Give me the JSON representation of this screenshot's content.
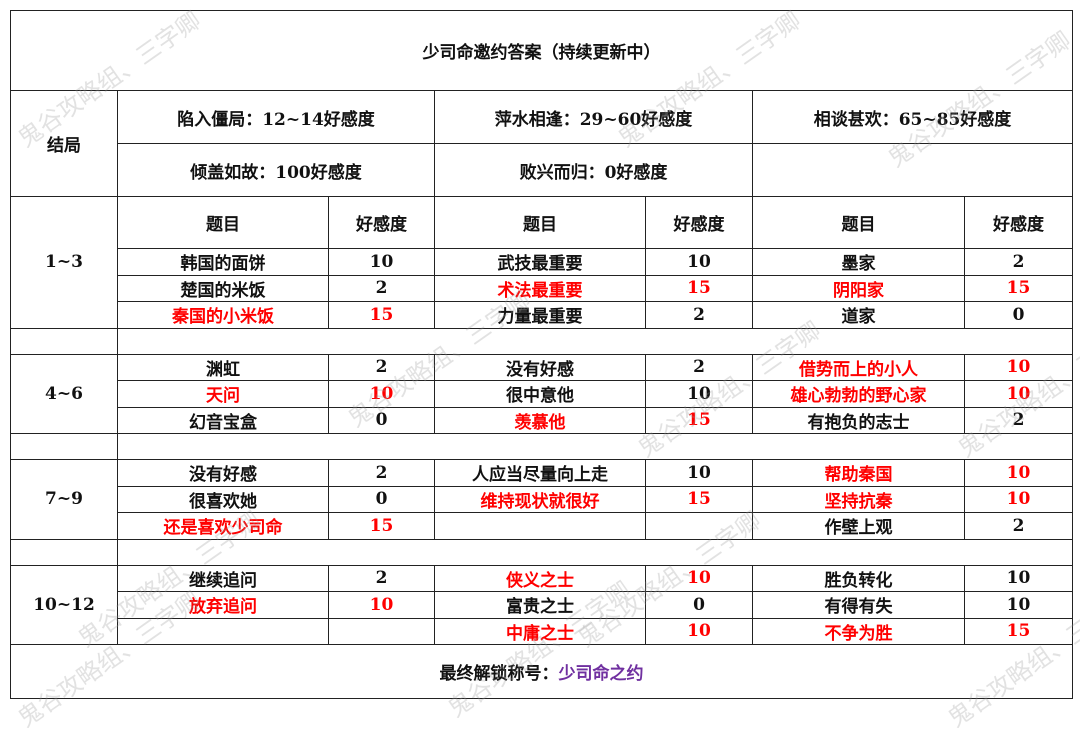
{
  "title": "少司命邀约答案（持续更新中）",
  "ending_label": "结局",
  "endings": [
    "陷入僵局：12~14好感度",
    "萍水相逢：29~60好感度",
    "相谈甚欢：65~85好感度",
    "倾盖如故：100好感度",
    "败兴而归：0好感度",
    ""
  ],
  "header": {
    "question": "题目",
    "score": "好感度"
  },
  "groups": [
    {
      "label": "1~3",
      "rows": [
        [
          [
            "韩国的面饼",
            "10",
            0
          ],
          [
            "武技最重要",
            "10",
            0
          ],
          [
            "墨家",
            "2",
            0
          ]
        ],
        [
          [
            "楚国的米饭",
            "2",
            0
          ],
          [
            "术法最重要",
            "15",
            1
          ],
          [
            "阴阳家",
            "15",
            1
          ]
        ],
        [
          [
            "秦国的小米饭",
            "15",
            1
          ],
          [
            "力量最重要",
            "2",
            0
          ],
          [
            "道家",
            "0",
            0
          ]
        ]
      ]
    },
    {
      "label": "4~6",
      "rows": [
        [
          [
            "渊虹",
            "2",
            0
          ],
          [
            "没有好感",
            "2",
            0
          ],
          [
            "借势而上的小人",
            "10",
            1
          ]
        ],
        [
          [
            "天问",
            "10",
            1
          ],
          [
            "很中意他",
            "10",
            0
          ],
          [
            "雄心勃勃的野心家",
            "10",
            1
          ]
        ],
        [
          [
            "幻音宝盒",
            "0",
            0
          ],
          [
            "羡慕他",
            "15",
            1
          ],
          [
            "有抱负的志士",
            "2",
            0
          ]
        ]
      ]
    },
    {
      "label": "7~9",
      "rows": [
        [
          [
            "没有好感",
            "2",
            0
          ],
          [
            "人应当尽量向上走",
            "10",
            0
          ],
          [
            "帮助秦国",
            "10",
            1
          ]
        ],
        [
          [
            "很喜欢她",
            "0",
            0
          ],
          [
            "维持现状就很好",
            "15",
            1
          ],
          [
            "坚持抗秦",
            "10",
            1
          ]
        ],
        [
          [
            "还是喜欢少司命",
            "15",
            1
          ],
          [
            "",
            "",
            0
          ],
          [
            "作壁上观",
            "2",
            0
          ]
        ]
      ]
    },
    {
      "label": "10~12",
      "rows": [
        [
          [
            "继续追问",
            "2",
            0
          ],
          [
            "侠义之士",
            "10",
            1
          ],
          [
            "胜负转化",
            "10",
            0
          ]
        ],
        [
          [
            "放弃追问",
            "10",
            1
          ],
          [
            "富贵之士",
            "0",
            0
          ],
          [
            "有得有失",
            "10",
            0
          ]
        ],
        [
          [
            "",
            "",
            0
          ],
          [
            "中庸之士",
            "10",
            1
          ],
          [
            "不争为胜",
            "15",
            1
          ]
        ]
      ]
    }
  ],
  "footer": {
    "label": "最终解锁称号：",
    "title": "少司命之约"
  },
  "watermark": "鬼谷攻略组、三字卿",
  "colors": {
    "highlight": "#ff0000",
    "title_purple": "#7030a0"
  }
}
